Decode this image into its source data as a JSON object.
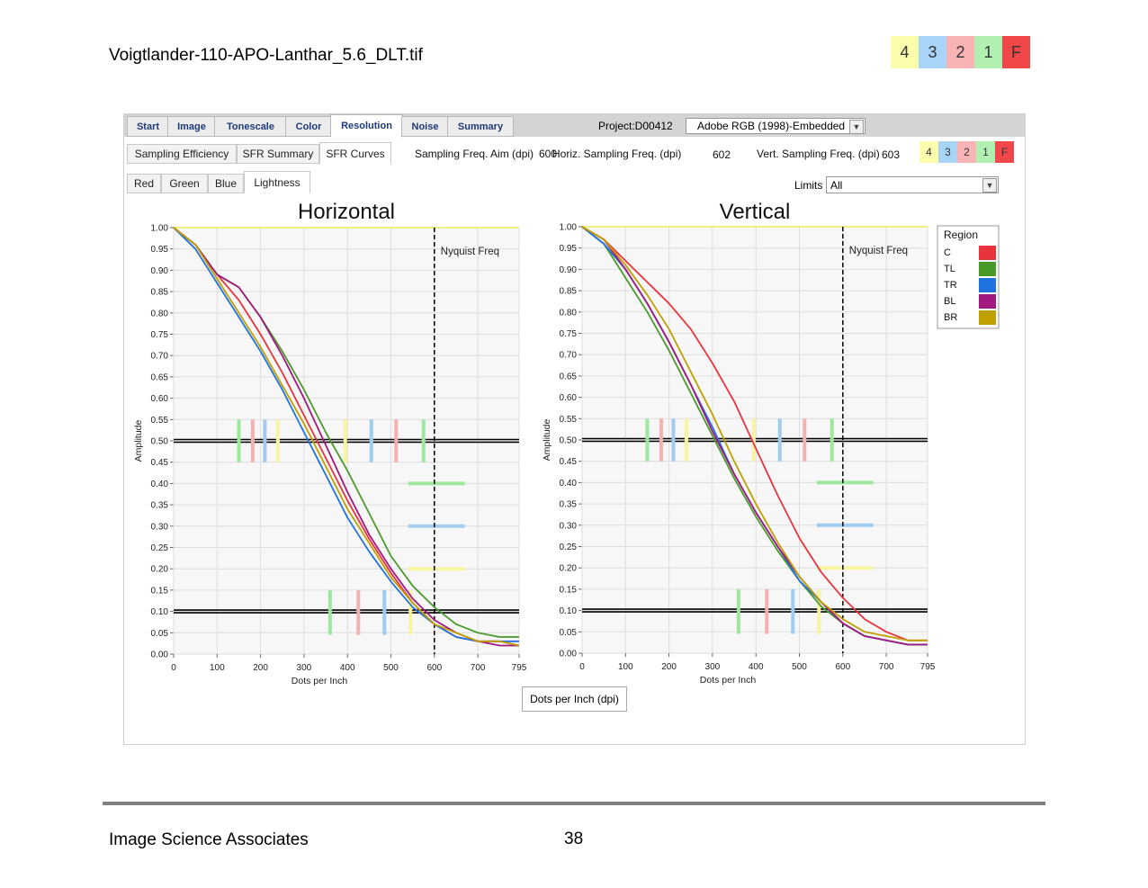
{
  "document": {
    "title": "Voigtlander-110-APO-Lanthar_5.6_DLT.tif",
    "footer_left": "Image Science Associates",
    "page_number": "38"
  },
  "grade_legend": [
    "4",
    "3",
    "2",
    "1",
    "F"
  ],
  "main_tabs": [
    {
      "label": "Start"
    },
    {
      "label": "Image"
    },
    {
      "label": "Tonescale"
    },
    {
      "label": "Color"
    },
    {
      "label": "Resolution",
      "active": true
    },
    {
      "label": "Noise"
    },
    {
      "label": "Summary"
    }
  ],
  "project_label": "Project:D00412",
  "color_profile": "Adobe RGB (1998)-Embedded",
  "sub_tabs": [
    {
      "label": "Sampling Efficiency"
    },
    {
      "label": "SFR Summary"
    },
    {
      "label": "SFR Curves",
      "active": true
    }
  ],
  "sampling": {
    "aim_label": "Sampling Freq. Aim (dpi)",
    "aim_value": "600",
    "horiz_label": "Horiz. Sampling Freq. (dpi)",
    "horiz_value": "602",
    "vert_label": "Vert. Sampling Freq. (dpi)",
    "vert_value": "603"
  },
  "channel_tabs": [
    {
      "label": "Red"
    },
    {
      "label": "Green"
    },
    {
      "label": "Blue"
    },
    {
      "label": "Lightness",
      "active": true
    }
  ],
  "limits": {
    "label": "Limits",
    "value": "All"
  },
  "x_unit_button": "Dots per Inch (dpi)",
  "legend": {
    "title": "Region",
    "entries": [
      {
        "name": "C",
        "color": "#e8343c"
      },
      {
        "name": "TL",
        "color": "#4a9a2a"
      },
      {
        "name": "TR",
        "color": "#2072e0"
      },
      {
        "name": "BL",
        "color": "#a01880"
      },
      {
        "name": "BR",
        "color": "#c0a000"
      }
    ]
  },
  "chart_data": [
    {
      "type": "line",
      "title": "Horizontal",
      "xlabel": "Dots per Inch",
      "ylabel": "Amplitude",
      "xlim": [
        0,
        795
      ],
      "ylim": [
        0,
        1
      ],
      "xticks": [
        "0",
        "100",
        "200",
        "300",
        "400",
        "500",
        "600",
        "700",
        "795"
      ],
      "yticks": [
        "0.00",
        "0.05",
        "0.10",
        "0.15",
        "0.20",
        "0.25",
        "0.30",
        "0.35",
        "0.40",
        "0.45",
        "0.50",
        "0.55",
        "0.60",
        "0.65",
        "0.70",
        "0.75",
        "0.80",
        "0.85",
        "0.90",
        "0.95",
        "1.00"
      ],
      "grid": true,
      "nyquist": {
        "x": 600,
        "label": "Nyquist Freq"
      },
      "reference_lines": [
        0.5,
        0.1
      ],
      "limit_markers": {
        "vertical_at_050": [
          {
            "x": 150,
            "color": "#9ee89e"
          },
          {
            "x": 182,
            "color": "#f5b0b0"
          },
          {
            "x": 210,
            "color": "#a0ccf0"
          },
          {
            "x": 240,
            "color": "#f8f4a0"
          },
          {
            "x": 395,
            "color": "#f8f4a0"
          },
          {
            "x": 455,
            "color": "#a0ccf0"
          },
          {
            "x": 512,
            "color": "#f5b0b0"
          },
          {
            "x": 575,
            "color": "#9ee89e"
          }
        ],
        "vertical_at_010": [
          {
            "x": 360,
            "color": "#9ee89e"
          },
          {
            "x": 425,
            "color": "#f5b0b0"
          },
          {
            "x": 485,
            "color": "#a0ccf0"
          },
          {
            "x": 545,
            "color": "#f8f4a0"
          }
        ],
        "horizontal": [
          {
            "y": 0.4,
            "color": "#9ee89e"
          },
          {
            "y": 0.3,
            "color": "#a0ccf0"
          },
          {
            "y": 0.2,
            "color": "#f8f4a0"
          }
        ],
        "horizontal_x": [
          540,
          670
        ],
        "top_line": {
          "y": 1.0,
          "color": "#f0f080"
        }
      },
      "series": [
        {
          "name": "C",
          "color": "#e8343c",
          "x": [
            0,
            50,
            100,
            150,
            200,
            250,
            300,
            350,
            400,
            450,
            500,
            550,
            600,
            650,
            700,
            750,
            795
          ],
          "y": [
            1.0,
            0.96,
            0.89,
            0.83,
            0.75,
            0.66,
            0.56,
            0.46,
            0.36,
            0.27,
            0.19,
            0.12,
            0.07,
            0.04,
            0.03,
            0.03,
            0.02
          ]
        },
        {
          "name": "TL",
          "color": "#4a9a2a",
          "x": [
            0,
            50,
            100,
            150,
            200,
            250,
            300,
            350,
            400,
            450,
            500,
            550,
            600,
            650,
            700,
            750,
            795
          ],
          "y": [
            1.0,
            0.96,
            0.89,
            0.86,
            0.79,
            0.71,
            0.62,
            0.52,
            0.43,
            0.33,
            0.23,
            0.16,
            0.11,
            0.07,
            0.05,
            0.04,
            0.04
          ]
        },
        {
          "name": "TR",
          "color": "#2072e0",
          "x": [
            0,
            50,
            100,
            150,
            200,
            250,
            300,
            350,
            400,
            450,
            500,
            550,
            600,
            650,
            700,
            750,
            795
          ],
          "y": [
            1.0,
            0.95,
            0.87,
            0.79,
            0.71,
            0.62,
            0.52,
            0.42,
            0.32,
            0.24,
            0.17,
            0.11,
            0.07,
            0.04,
            0.03,
            0.03,
            0.03
          ]
        },
        {
          "name": "BL",
          "color": "#a01880",
          "x": [
            0,
            50,
            100,
            150,
            200,
            250,
            300,
            350,
            400,
            450,
            500,
            550,
            600,
            650,
            700,
            750,
            795
          ],
          "y": [
            1.0,
            0.96,
            0.89,
            0.86,
            0.79,
            0.7,
            0.6,
            0.49,
            0.38,
            0.28,
            0.2,
            0.13,
            0.08,
            0.05,
            0.03,
            0.02,
            0.02
          ]
        },
        {
          "name": "BR",
          "color": "#c0a000",
          "x": [
            0,
            50,
            100,
            150,
            200,
            250,
            300,
            350,
            400,
            450,
            500,
            550,
            600,
            650,
            700,
            750,
            795
          ],
          "y": [
            1.0,
            0.96,
            0.88,
            0.8,
            0.72,
            0.63,
            0.54,
            0.44,
            0.34,
            0.26,
            0.18,
            0.12,
            0.07,
            0.05,
            0.03,
            0.03,
            0.02
          ]
        }
      ]
    },
    {
      "type": "line",
      "title": "Vertical",
      "xlabel": "Dots per Inch",
      "ylabel": "Amplitude",
      "xlim": [
        0,
        795
      ],
      "ylim": [
        0,
        1
      ],
      "xticks": [
        "0",
        "100",
        "200",
        "300",
        "400",
        "500",
        "600",
        "700",
        "795"
      ],
      "yticks": [
        "0.00",
        "0.05",
        "0.10",
        "0.15",
        "0.20",
        "0.25",
        "0.30",
        "0.35",
        "0.40",
        "0.45",
        "0.50",
        "0.55",
        "0.60",
        "0.65",
        "0.70",
        "0.75",
        "0.80",
        "0.85",
        "0.90",
        "0.95",
        "1.00"
      ],
      "grid": true,
      "nyquist": {
        "x": 600,
        "label": "Nyquist Freq"
      },
      "reference_lines": [
        0.5,
        0.1
      ],
      "limit_markers": {
        "vertical_at_050": [
          {
            "x": 150,
            "color": "#9ee89e"
          },
          {
            "x": 182,
            "color": "#f5b0b0"
          },
          {
            "x": 210,
            "color": "#a0ccf0"
          },
          {
            "x": 240,
            "color": "#f8f4a0"
          },
          {
            "x": 395,
            "color": "#f8f4a0"
          },
          {
            "x": 455,
            "color": "#a0ccf0"
          },
          {
            "x": 512,
            "color": "#f5b0b0"
          },
          {
            "x": 575,
            "color": "#9ee89e"
          }
        ],
        "vertical_at_010": [
          {
            "x": 360,
            "color": "#9ee89e"
          },
          {
            "x": 425,
            "color": "#f5b0b0"
          },
          {
            "x": 485,
            "color": "#a0ccf0"
          },
          {
            "x": 545,
            "color": "#f8f4a0"
          }
        ],
        "horizontal": [
          {
            "y": 0.4,
            "color": "#9ee89e"
          },
          {
            "y": 0.3,
            "color": "#a0ccf0"
          },
          {
            "y": 0.2,
            "color": "#f8f4a0"
          }
        ],
        "horizontal_x": [
          540,
          670
        ],
        "top_line": {
          "y": 1.0,
          "color": "#f0f080"
        }
      },
      "series": [
        {
          "name": "C",
          "color": "#e8343c",
          "x": [
            0,
            50,
            100,
            150,
            200,
            250,
            300,
            350,
            400,
            450,
            500,
            550,
            600,
            650,
            700,
            750,
            795
          ],
          "y": [
            1.0,
            0.97,
            0.92,
            0.87,
            0.82,
            0.76,
            0.68,
            0.59,
            0.48,
            0.37,
            0.27,
            0.19,
            0.13,
            0.08,
            0.05,
            0.03,
            0.03
          ]
        },
        {
          "name": "TL",
          "color": "#4a9a2a",
          "x": [
            0,
            50,
            100,
            150,
            200,
            250,
            300,
            350,
            400,
            450,
            500,
            550,
            600,
            650,
            700,
            750,
            795
          ],
          "y": [
            1.0,
            0.96,
            0.88,
            0.8,
            0.71,
            0.61,
            0.51,
            0.41,
            0.32,
            0.24,
            0.17,
            0.11,
            0.07,
            0.04,
            0.03,
            0.02,
            0.02
          ]
        },
        {
          "name": "TR",
          "color": "#2072e0",
          "x": [
            0,
            50,
            100,
            150,
            200,
            250,
            300,
            350,
            400,
            450,
            500,
            550,
            600,
            650,
            700,
            750,
            795
          ],
          "y": [
            1.0,
            0.96,
            0.9,
            0.82,
            0.73,
            0.63,
            0.53,
            0.42,
            0.33,
            0.25,
            0.17,
            0.12,
            0.07,
            0.04,
            0.03,
            0.02,
            0.02
          ]
        },
        {
          "name": "BL",
          "color": "#a01880",
          "x": [
            0,
            50,
            100,
            150,
            200,
            250,
            300,
            350,
            400,
            450,
            500,
            550,
            600,
            650,
            700,
            750,
            795
          ],
          "y": [
            1.0,
            0.97,
            0.9,
            0.82,
            0.73,
            0.63,
            0.52,
            0.42,
            0.33,
            0.25,
            0.18,
            0.12,
            0.07,
            0.04,
            0.03,
            0.02,
            0.02
          ]
        },
        {
          "name": "BR",
          "color": "#c0a000",
          "x": [
            0,
            50,
            100,
            150,
            200,
            250,
            300,
            350,
            400,
            450,
            500,
            550,
            600,
            650,
            700,
            750,
            795
          ],
          "y": [
            1.0,
            0.97,
            0.91,
            0.84,
            0.76,
            0.66,
            0.56,
            0.45,
            0.35,
            0.26,
            0.18,
            0.12,
            0.08,
            0.05,
            0.04,
            0.03,
            0.03
          ]
        }
      ]
    }
  ]
}
